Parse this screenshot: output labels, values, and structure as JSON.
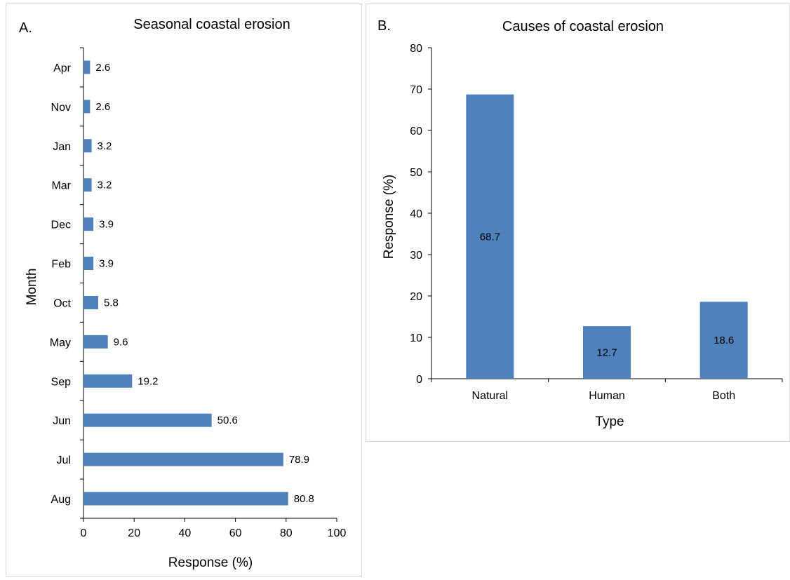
{
  "chart_data": [
    {
      "panel_label": "A.",
      "type": "bar",
      "orientation": "horizontal",
      "title": "Seasonal coastal erosion",
      "xlabel": "Response (%)",
      "ylabel": "Month",
      "categories": [
        "Apr",
        "Nov",
        "Jan",
        "Mar",
        "Dec",
        "Feb",
        "Oct",
        "May",
        "Sep",
        "Jun",
        "Jul",
        "Aug"
      ],
      "values": [
        2.6,
        2.6,
        3.2,
        3.2,
        3.9,
        3.9,
        5.8,
        9.6,
        19.2,
        50.6,
        78.9,
        80.8
      ],
      "data_labels": [
        "2.6",
        "2.6",
        "3.2",
        "3.2",
        "3.9",
        "3.9",
        "5.8",
        "9.6",
        "19.2",
        "50.6",
        "78.9",
        "80.8"
      ],
      "xlim": [
        0,
        100
      ],
      "xticks": [
        "0",
        "20",
        "40",
        "60",
        "80",
        "100"
      ],
      "grid": false,
      "bar_color": "#4f81bd"
    },
    {
      "panel_label": "B.",
      "type": "bar",
      "orientation": "vertical",
      "title": "Causes of coastal erosion",
      "xlabel": "Type",
      "ylabel": "Response (%)",
      "categories": [
        "Natural",
        "Human",
        "Both"
      ],
      "values": [
        68.7,
        12.7,
        18.6
      ],
      "data_labels": [
        "68.7",
        "12.7",
        "18.6"
      ],
      "ylim": [
        0,
        80
      ],
      "yticks": [
        "0",
        "10",
        "20",
        "30",
        "40",
        "50",
        "60",
        "70",
        "80"
      ],
      "grid": false,
      "bar_color": "#4f81bd"
    }
  ]
}
